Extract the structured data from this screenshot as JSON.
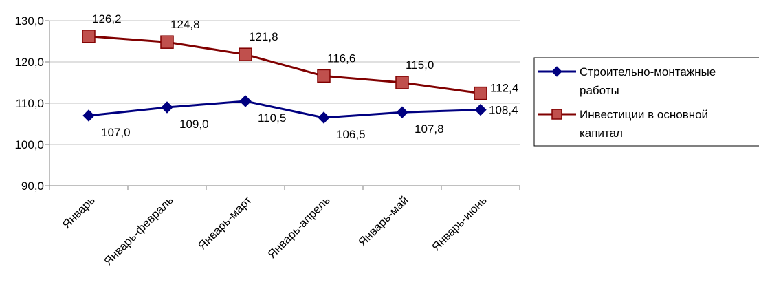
{
  "chart_data": {
    "type": "line",
    "categories": [
      "Январь",
      "Январь-февраль",
      "Январь-март",
      "Январь-апрель",
      "Январь-май",
      "Январь-июнь"
    ],
    "series": [
      {
        "name": "Строительно-монтажные работы",
        "legend_lines": [
          "Строительно-монтажные",
          "работы"
        ],
        "values": [
          107.0,
          109.0,
          110.5,
          106.5,
          107.8,
          108.4
        ],
        "labels": [
          "107,0",
          "109,0",
          "110,5",
          "106,5",
          "107,8",
          "108,4"
        ],
        "color": "#000080",
        "marker": "diamond"
      },
      {
        "name": "Инвестиции в основной капитал",
        "legend_lines": [
          "Инвестиции в основной",
          "капитал"
        ],
        "values": [
          126.2,
          124.8,
          121.8,
          116.6,
          115.0,
          112.4
        ],
        "labels": [
          "126,2",
          "124,8",
          "121,8",
          "116,6",
          "115,0",
          "112,4"
        ],
        "color": "#800000",
        "marker_fill": "#C0504D",
        "marker": "square"
      }
    ],
    "ylim": [
      90,
      130
    ],
    "yticks": [
      90,
      100,
      110,
      120,
      130
    ],
    "ytick_labels": [
      "90,0",
      "100,0",
      "110,0",
      "120,0",
      "130,0"
    ],
    "grid": true,
    "legend": "right",
    "title": "",
    "xlabel": "",
    "ylabel": ""
  }
}
